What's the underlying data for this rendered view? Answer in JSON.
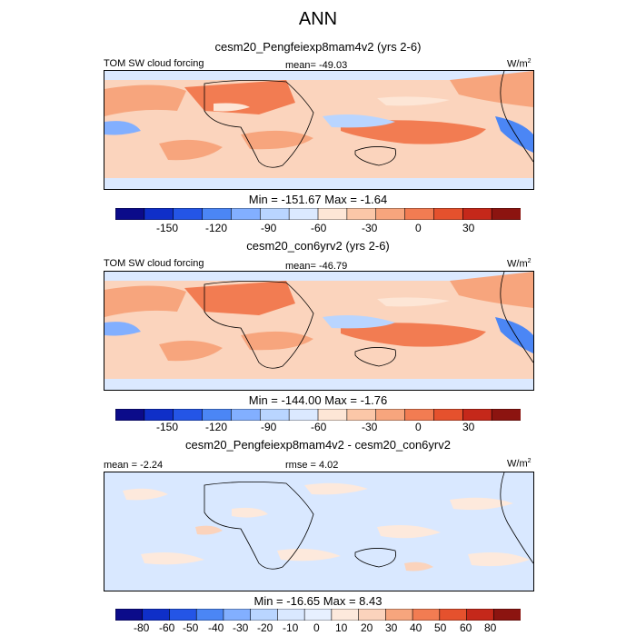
{
  "page_title": "ANN",
  "unit_base": "W/m",
  "unit_exp": "2",
  "colors": {
    "panel_scale": [
      "#0b0b8a",
      "#0f2fc8",
      "#2455e6",
      "#4b86f5",
      "#82afff",
      "#b9d5ff",
      "#dbe9ff",
      "#fde6d6",
      "#fbc7a8",
      "#f7a57d",
      "#f27c52",
      "#e5512d",
      "#c5281a",
      "#8c1410"
    ],
    "diff_scale": [
      "#0b0b8a",
      "#0f2fc8",
      "#2455e6",
      "#4b86f5",
      "#82afff",
      "#b9d5ff",
      "#d9e8ff",
      "#e7f0ff",
      "#fde9dc",
      "#fbd3bc",
      "#f7a57d",
      "#f27c52",
      "#e5512d",
      "#c5281a",
      "#8c1410"
    ]
  },
  "chart_data": [
    {
      "type": "heatmap",
      "title": "cesm20_Pengfeiexp8mam4v2 (yrs 2-6)",
      "variable": "TOM SW cloud forcing",
      "mean_label": "mean=",
      "mean": "-49.03",
      "units": "W/m2",
      "min_label": "Min =",
      "min": "-151.67",
      "max_label": "Max =",
      "max": "-1.64",
      "colorbar_ticks": [
        "-150",
        "-120",
        "-90",
        "-60",
        "-30",
        "0",
        "30"
      ],
      "colorbar_range": [
        -180,
        60
      ]
    },
    {
      "type": "heatmap",
      "title": "cesm20_con6yrv2 (yrs 2-6)",
      "variable": "TOM SW cloud forcing",
      "mean_label": "mean=",
      "mean": "-46.79",
      "units": "W/m2",
      "min_label": "Min =",
      "min": "-144.00",
      "max_label": "Max =",
      "max": "-1.76",
      "colorbar_ticks": [
        "-150",
        "-120",
        "-90",
        "-60",
        "-30",
        "0",
        "30"
      ],
      "colorbar_range": [
        -180,
        60
      ]
    },
    {
      "type": "heatmap",
      "title": "cesm20_Pengfeiexp8mam4v2 - cesm20_con6yrv2",
      "mean_label": "mean =",
      "mean": "-2.24",
      "rmse_label": "rmse =",
      "rmse": "4.02",
      "units": "W/m2",
      "min_label": "Min =",
      "min": "-16.65",
      "max_label": "Max =",
      "max": "8.43",
      "colorbar_ticks": [
        "-80",
        "-60",
        "-50",
        "-40",
        "-30",
        "-20",
        "-10",
        "0",
        "10",
        "20",
        "30",
        "40",
        "50",
        "60",
        "80"
      ],
      "colorbar_range": [
        -90,
        90
      ]
    }
  ]
}
